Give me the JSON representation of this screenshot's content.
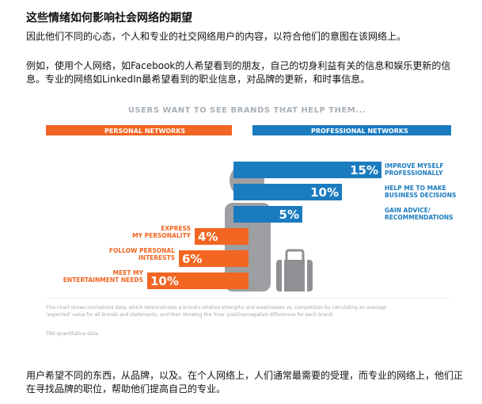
{
  "article": {
    "title": "这些情绪如何影响社会网络的期望",
    "paragraph1": "因此他们不同的心态，个人和专业的社交网络用户的内容，以符合他们的意图在该网络上。",
    "paragraph2": "例如，使用个人网络，如Facebook的人希望看到的朋友，自己的切身利益有关的信息和娱乐更新的信息。专业的网络如LinkedIn最希望看到的职业信息，对品牌的更新，和时事信息。",
    "paragraph3": "用户希望不同的东西，从品牌，以及。在个人网络上，人们通常最需要的受理，而专业的网络上，他们正在寻找品牌的职位，帮助他们提高自己的专业。"
  },
  "chart_data": {
    "type": "bar",
    "title": "USERS WANT TO SEE BRANDS THAT HELP THEM...",
    "unit": "%",
    "series": [
      {
        "name": "PERSONAL NETWORKS",
        "color": "#f26522",
        "categories": [
          [
            "EXPRESS",
            "MY PERSONALITY"
          ],
          [
            "FOLLOW PERSONAL",
            "INTERESTS"
          ],
          [
            "MEET MY",
            "ENTERTAINMENT NEEDS"
          ]
        ],
        "values": [
          4,
          6,
          10
        ],
        "labels": [
          "4%",
          "6%",
          "10%"
        ]
      },
      {
        "name": "PROFESSIONAL NETWORKS",
        "color": "#1b7bbf",
        "categories": [
          [
            "IMPROVE MYSELF",
            "PROFESSIONALLY"
          ],
          [
            "HELP ME TO MAKE",
            "BUSINESS DECISIONS"
          ],
          [
            "GAIN ADVICE/",
            "RECOMMENDATIONS"
          ]
        ],
        "values": [
          15,
          10,
          5
        ],
        "labels": [
          "15%",
          "10%",
          "5%"
        ]
      }
    ],
    "footnote": "This chart shows normalized data, which demonstrates a brand's relative strengths and weaknesses vs. competition by calculating an average 'expected' value for all brands and statements, and then showing the 'true' positive/negative differences for each brand.",
    "source": "TNS quantitative data."
  }
}
